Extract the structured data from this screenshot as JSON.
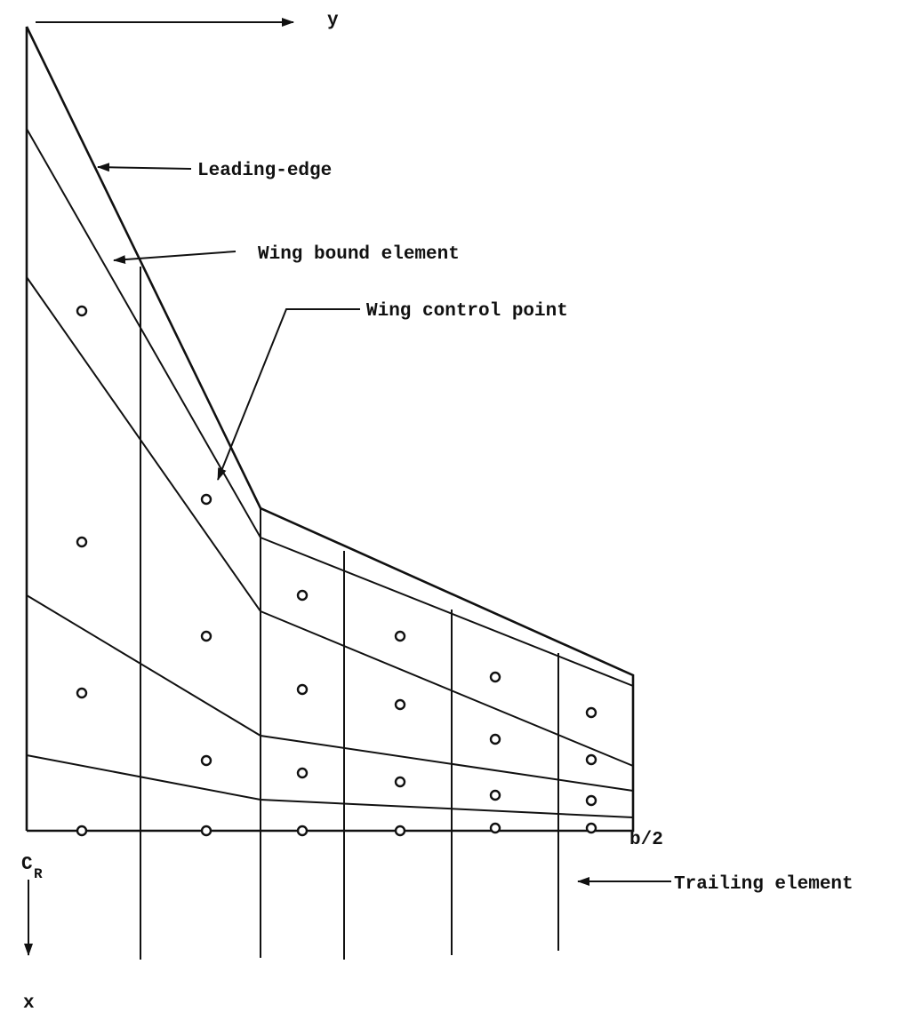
{
  "labels": {
    "y_axis": "y",
    "leading_edge": "Leading-edge",
    "wing_bound_element": "Wing bound element",
    "wing_control_point": "Wing control point",
    "semispan": "b/2",
    "root_chord": "C",
    "root_chord_subscript": "R",
    "trailing_element": "Trailing element",
    "x_axis": "x"
  }
}
